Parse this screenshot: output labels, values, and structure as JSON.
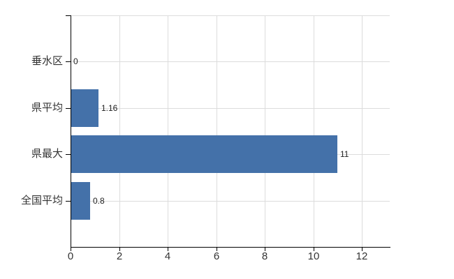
{
  "chart_data": {
    "type": "bar",
    "orientation": "horizontal",
    "title": "",
    "xlabel": "",
    "ylabel": "",
    "categories": [
      "垂水区",
      "県平均",
      "県最大",
      "全国平均"
    ],
    "values": [
      0,
      1.16,
      11,
      0.8
    ],
    "value_labels": [
      "0",
      "1.16",
      "11",
      "0.8"
    ],
    "x_ticks": [
      "0",
      "2",
      "4",
      "6",
      "8",
      "10",
      "12"
    ],
    "x_tick_values": [
      0,
      2,
      4,
      6,
      8,
      10,
      12
    ],
    "xlim": [
      0,
      13.15
    ],
    "grid": true,
    "legend": false,
    "colors": {
      "bar": "#4471A9",
      "grid": "#DCDCDC",
      "axis": "#000000",
      "category_label": "#333333",
      "tick_label": "#333333",
      "value_label": "#222222",
      "background": "#FFFFFF"
    }
  }
}
